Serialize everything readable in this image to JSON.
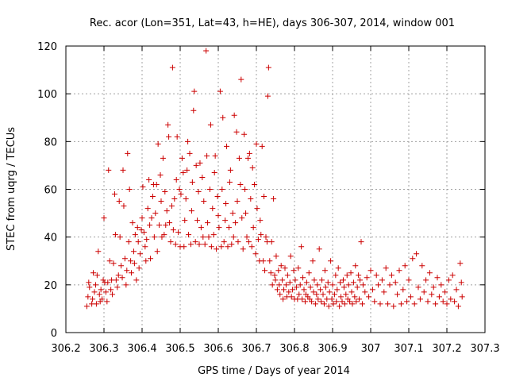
{
  "chart_data": {
    "type": "scatter",
    "title": "Rec. acor (Lon=351, Lat=43, h=HE), days 306-307, 2014, window 001",
    "xlabel": "GPS time / Days of year 2014",
    "ylabel": "STEC from uqrg / TECUs",
    "xlim": [
      306.2,
      307.3
    ],
    "ylim": [
      0,
      120
    ],
    "xticks": [
      "306.2",
      "306.3",
      "306.4",
      "306.5",
      "306.6",
      "306.7",
      "306.8",
      "306.9",
      "307",
      "307.1",
      "307.2",
      "307.3"
    ],
    "yticks": [
      "0",
      "20",
      "40",
      "60",
      "80",
      "100",
      "120"
    ],
    "grid": true,
    "marker": "+",
    "color": "#cc0000",
    "points": [
      [
        306.255,
        11
      ],
      [
        306.258,
        15
      ],
      [
        306.26,
        21
      ],
      [
        306.262,
        19
      ],
      [
        306.268,
        12
      ],
      [
        306.27,
        14
      ],
      [
        306.272,
        25
      ],
      [
        306.275,
        17
      ],
      [
        306.278,
        20
      ],
      [
        306.28,
        12
      ],
      [
        306.282,
        24
      ],
      [
        306.285,
        34
      ],
      [
        306.288,
        16
      ],
      [
        306.29,
        13
      ],
      [
        306.292,
        18
      ],
      [
        306.295,
        14
      ],
      [
        306.298,
        22
      ],
      [
        306.3,
        48
      ],
      [
        306.302,
        21
      ],
      [
        306.305,
        17
      ],
      [
        306.308,
        13
      ],
      [
        306.31,
        21
      ],
      [
        306.312,
        68
      ],
      [
        306.315,
        30
      ],
      [
        306.318,
        18
      ],
      [
        306.32,
        22
      ],
      [
        306.322,
        16
      ],
      [
        306.325,
        29
      ],
      [
        306.328,
        58
      ],
      [
        306.33,
        41
      ],
      [
        306.332,
        22
      ],
      [
        306.335,
        19
      ],
      [
        306.338,
        24
      ],
      [
        306.34,
        55
      ],
      [
        306.342,
        40
      ],
      [
        306.345,
        28
      ],
      [
        306.348,
        23
      ],
      [
        306.35,
        68
      ],
      [
        306.352,
        53
      ],
      [
        306.355,
        31
      ],
      [
        306.358,
        20
      ],
      [
        306.36,
        26
      ],
      [
        306.362,
        75
      ],
      [
        306.365,
        38
      ],
      [
        306.367,
        60
      ],
      [
        306.37,
        30
      ],
      [
        306.372,
        25
      ],
      [
        306.375,
        46
      ],
      [
        306.378,
        34
      ],
      [
        306.38,
        29
      ],
      [
        306.382,
        41
      ],
      [
        306.385,
        22
      ],
      [
        306.388,
        44
      ],
      [
        306.39,
        38
      ],
      [
        306.392,
        27
      ],
      [
        306.395,
        33
      ],
      [
        306.398,
        43
      ],
      [
        306.4,
        48
      ],
      [
        306.402,
        61
      ],
      [
        306.405,
        42
      ],
      [
        306.408,
        36
      ],
      [
        306.41,
        30
      ],
      [
        306.412,
        39
      ],
      [
        306.415,
        52
      ],
      [
        306.418,
        64
      ],
      [
        306.42,
        45
      ],
      [
        306.422,
        31
      ],
      [
        306.425,
        48
      ],
      [
        306.428,
        57
      ],
      [
        306.43,
        62
      ],
      [
        306.432,
        40
      ],
      [
        306.435,
        50
      ],
      [
        306.438,
        62
      ],
      [
        306.44,
        34
      ],
      [
        306.442,
        79
      ],
      [
        306.445,
        45
      ],
      [
        306.448,
        66
      ],
      [
        306.45,
        55
      ],
      [
        306.452,
        40
      ],
      [
        306.455,
        73
      ],
      [
        306.458,
        41
      ],
      [
        306.46,
        59
      ],
      [
        306.462,
        45
      ],
      [
        306.465,
        51
      ],
      [
        306.468,
        87
      ],
      [
        306.47,
        82
      ],
      [
        306.472,
        46
      ],
      [
        306.475,
        38
      ],
      [
        306.478,
        53
      ],
      [
        306.48,
        111
      ],
      [
        306.482,
        43
      ],
      [
        306.485,
        56
      ],
      [
        306.488,
        37
      ],
      [
        306.49,
        64
      ],
      [
        306.492,
        82
      ],
      [
        306.495,
        42
      ],
      [
        306.498,
        60
      ],
      [
        306.5,
        36
      ],
      [
        306.502,
        58
      ],
      [
        306.505,
        73
      ],
      [
        306.508,
        67
      ],
      [
        306.51,
        36
      ],
      [
        306.512,
        47
      ],
      [
        306.515,
        56
      ],
      [
        306.518,
        68
      ],
      [
        306.52,
        80
      ],
      [
        306.522,
        41
      ],
      [
        306.525,
        75
      ],
      [
        306.528,
        37
      ],
      [
        306.53,
        51
      ],
      [
        306.532,
        63
      ],
      [
        306.535,
        93
      ],
      [
        306.537,
        101
      ],
      [
        306.54,
        38
      ],
      [
        306.542,
        70
      ],
      [
        306.545,
        47
      ],
      [
        306.548,
        59
      ],
      [
        306.55,
        37
      ],
      [
        306.552,
        71
      ],
      [
        306.555,
        44
      ],
      [
        306.558,
        65
      ],
      [
        306.56,
        40
      ],
      [
        306.562,
        55
      ],
      [
        306.565,
        37
      ],
      [
        306.568,
        118
      ],
      [
        306.57,
        74
      ],
      [
        306.572,
        46
      ],
      [
        306.575,
        40
      ],
      [
        306.578,
        60
      ],
      [
        306.58,
        87
      ],
      [
        306.582,
        36
      ],
      [
        306.585,
        52
      ],
      [
        306.588,
        41
      ],
      [
        306.59,
        67
      ],
      [
        306.592,
        74
      ],
      [
        306.595,
        35
      ],
      [
        306.598,
        57
      ],
      [
        306.6,
        49
      ],
      [
        306.602,
        44
      ],
      [
        306.605,
        101
      ],
      [
        306.608,
        36
      ],
      [
        306.61,
        60
      ],
      [
        306.612,
        90
      ],
      [
        306.615,
        38
      ],
      [
        306.618,
        47
      ],
      [
        306.62,
        54
      ],
      [
        306.622,
        78
      ],
      [
        306.625,
        36
      ],
      [
        306.628,
        44
      ],
      [
        306.63,
        63
      ],
      [
        306.632,
        68
      ],
      [
        306.635,
        37
      ],
      [
        306.638,
        50
      ],
      [
        306.64,
        40
      ],
      [
        306.642,
        91
      ],
      [
        306.645,
        46
      ],
      [
        306.648,
        84
      ],
      [
        306.65,
        55
      ],
      [
        306.652,
        38
      ],
      [
        306.655,
        73
      ],
      [
        306.658,
        62
      ],
      [
        306.66,
        106
      ],
      [
        306.662,
        48
      ],
      [
        306.665,
        35
      ],
      [
        306.668,
        83
      ],
      [
        306.67,
        60
      ],
      [
        306.672,
        50
      ],
      [
        306.675,
        40
      ],
      [
        306.678,
        73
      ],
      [
        306.68,
        38
      ],
      [
        306.682,
        75
      ],
      [
        306.685,
        56
      ],
      [
        306.688,
        36
      ],
      [
        306.69,
        69
      ],
      [
        306.692,
        44
      ],
      [
        306.695,
        62
      ],
      [
        306.698,
        33
      ],
      [
        306.7,
        79
      ],
      [
        306.702,
        52
      ],
      [
        306.705,
        39
      ],
      [
        306.708,
        30
      ],
      [
        306.71,
        47
      ],
      [
        306.712,
        41
      ],
      [
        306.715,
        78
      ],
      [
        306.718,
        30
      ],
      [
        306.72,
        57
      ],
      [
        306.722,
        26
      ],
      [
        306.725,
        40
      ],
      [
        306.728,
        38
      ],
      [
        306.73,
        99
      ],
      [
        306.732,
        111
      ],
      [
        306.735,
        30
      ],
      [
        306.738,
        25
      ],
      [
        306.74,
        38
      ],
      [
        306.742,
        20
      ],
      [
        306.745,
        56
      ],
      [
        306.748,
        24
      ],
      [
        306.75,
        22
      ],
      [
        306.752,
        32
      ],
      [
        306.755,
        18
      ],
      [
        306.758,
        26
      ],
      [
        306.76,
        20
      ],
      [
        306.762,
        16
      ],
      [
        306.765,
        28
      ],
      [
        306.768,
        22
      ],
      [
        306.77,
        14
      ],
      [
        306.772,
        18
      ],
      [
        306.775,
        27
      ],
      [
        306.778,
        20
      ],
      [
        306.78,
        15
      ],
      [
        306.782,
        24
      ],
      [
        306.785,
        17
      ],
      [
        306.788,
        21
      ],
      [
        306.79,
        32
      ],
      [
        306.792,
        15
      ],
      [
        306.795,
        18
      ],
      [
        306.798,
        26
      ],
      [
        306.8,
        14
      ],
      [
        306.802,
        22
      ],
      [
        306.805,
        19
      ],
      [
        306.808,
        14
      ],
      [
        306.81,
        27
      ],
      [
        306.812,
        16
      ],
      [
        306.815,
        20
      ],
      [
        306.818,
        36
      ],
      [
        306.82,
        14
      ],
      [
        306.822,
        23
      ],
      [
        306.825,
        18
      ],
      [
        306.828,
        13
      ],
      [
        306.83,
        16
      ],
      [
        306.832,
        21
      ],
      [
        306.835,
        15
      ],
      [
        306.838,
        25
      ],
      [
        306.84,
        14
      ],
      [
        306.842,
        19
      ],
      [
        306.845,
        13
      ],
      [
        306.848,
        30
      ],
      [
        306.85,
        17
      ],
      [
        306.852,
        22
      ],
      [
        306.855,
        12
      ],
      [
        306.858,
        16
      ],
      [
        306.86,
        20
      ],
      [
        306.862,
        14
      ],
      [
        306.865,
        35
      ],
      [
        306.868,
        18
      ],
      [
        306.87,
        13
      ],
      [
        306.872,
        22
      ],
      [
        306.875,
        16
      ],
      [
        306.878,
        12
      ],
      [
        306.88,
        26
      ],
      [
        306.882,
        19
      ],
      [
        306.885,
        14
      ],
      [
        306.888,
        21
      ],
      [
        306.89,
        11
      ],
      [
        306.892,
        17
      ],
      [
        306.895,
        30
      ],
      [
        306.898,
        14
      ],
      [
        306.9,
        20
      ],
      [
        306.902,
        12
      ],
      [
        306.905,
        16
      ],
      [
        306.908,
        24
      ],
      [
        306.91,
        13
      ],
      [
        306.912,
        18
      ],
      [
        306.915,
        27
      ],
      [
        306.918,
        11
      ],
      [
        306.92,
        21
      ],
      [
        306.922,
        15
      ],
      [
        306.925,
        13
      ],
      [
        306.928,
        22
      ],
      [
        306.93,
        19
      ],
      [
        306.932,
        12
      ],
      [
        306.935,
        16
      ],
      [
        306.938,
        24
      ],
      [
        306.94,
        14
      ],
      [
        306.942,
        20
      ],
      [
        306.945,
        13
      ],
      [
        306.948,
        25
      ],
      [
        306.95,
        17
      ],
      [
        306.952,
        12
      ],
      [
        306.955,
        21
      ],
      [
        306.958,
        15
      ],
      [
        306.96,
        28
      ],
      [
        306.962,
        13
      ],
      [
        306.965,
        19
      ],
      [
        306.968,
        24
      ],
      [
        306.97,
        14
      ],
      [
        306.972,
        22
      ],
      [
        306.975,
        38
      ],
      [
        306.978,
        12
      ],
      [
        306.98,
        20
      ],
      [
        306.985,
        17
      ],
      [
        306.99,
        23
      ],
      [
        306.995,
        15
      ],
      [
        307.0,
        26
      ],
      [
        307.005,
        18
      ],
      [
        307.01,
        13
      ],
      [
        307.015,
        24
      ],
      [
        307.02,
        20
      ],
      [
        307.025,
        12
      ],
      [
        307.03,
        22
      ],
      [
        307.035,
        17
      ],
      [
        307.04,
        27
      ],
      [
        307.045,
        12
      ],
      [
        307.05,
        20
      ],
      [
        307.055,
        24
      ],
      [
        307.06,
        11
      ],
      [
        307.065,
        21
      ],
      [
        307.07,
        16
      ],
      [
        307.075,
        26
      ],
      [
        307.08,
        12
      ],
      [
        307.085,
        18
      ],
      [
        307.09,
        28
      ],
      [
        307.095,
        13
      ],
      [
        307.1,
        22
      ],
      [
        307.105,
        15
      ],
      [
        307.11,
        31
      ],
      [
        307.115,
        12
      ],
      [
        307.12,
        33
      ],
      [
        307.125,
        19
      ],
      [
        307.13,
        14
      ],
      [
        307.135,
        28
      ],
      [
        307.14,
        17
      ],
      [
        307.145,
        22
      ],
      [
        307.15,
        13
      ],
      [
        307.155,
        25
      ],
      [
        307.16,
        16
      ],
      [
        307.165,
        19
      ],
      [
        307.17,
        12
      ],
      [
        307.175,
        23
      ],
      [
        307.18,
        15
      ],
      [
        307.185,
        20
      ],
      [
        307.19,
        13
      ],
      [
        307.195,
        17
      ],
      [
        307.2,
        12
      ],
      [
        307.205,
        22
      ],
      [
        307.21,
        14
      ],
      [
        307.215,
        24
      ],
      [
        307.22,
        13
      ],
      [
        307.225,
        18
      ],
      [
        307.23,
        11
      ],
      [
        307.235,
        29
      ],
      [
        307.238,
        21
      ],
      [
        307.24,
        15
      ]
    ]
  }
}
